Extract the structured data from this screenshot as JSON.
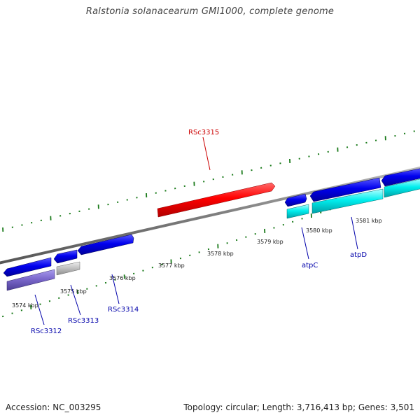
{
  "title": "Ralstonia solanacearum GMI1000, complete genome",
  "footer": {
    "accession": "Accession: NC_003295",
    "summary": "Topology: circular; Length: 3,716,413 bp; Genes: 3,501"
  },
  "colors": {
    "highlight": "#ff0000",
    "forward_gene": "#0000ee",
    "reverse_gene_cyan": "#00e5ee",
    "reverse_gene_purple": "#7b68cc",
    "reverse_gene_gray": "#bdbdbd",
    "backbone": "#888888",
    "tick": "#1a7a1a",
    "label_blue": "#0000aa",
    "label_red": "#cc0000"
  },
  "scale_labels": [
    "3574 kbp",
    "3575 kbp",
    "3576 kbp",
    "3577 kbp",
    "3578 kbp",
    "3579 kbp",
    "3580 kbp",
    "3581 kbp"
  ],
  "gene_labels": [
    {
      "text": "RSc3315",
      "color": "red"
    },
    {
      "text": "RSc3312",
      "color": "blue"
    },
    {
      "text": "RSc3313",
      "color": "blue"
    },
    {
      "text": "RSc3314",
      "color": "blue"
    },
    {
      "text": "atpC",
      "color": "blue"
    },
    {
      "text": "atpD",
      "color": "blue"
    }
  ]
}
